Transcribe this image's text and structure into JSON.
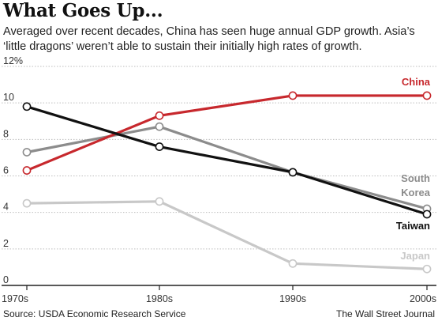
{
  "header": {
    "title": "What Goes Up...",
    "subtitle": "Averaged over recent decades, China has seen huge annual GDP growth. Asia’s ‘little dragons’ weren’t able to sustain their initially high rates of growth."
  },
  "footer": {
    "source": "Source: USDA Economic Research Service",
    "credit": "The Wall Street Journal"
  },
  "chart_data": {
    "type": "line",
    "title": "What Goes Up...",
    "subtitle": "Averaged over recent decades, China has seen huge annual GDP growth. Asia’s ‘little dragons’ weren’t able to sustain their initially high rates of growth.",
    "xlabel": "",
    "ylabel": "",
    "categories": [
      "1970s",
      "1980s",
      "1990s",
      "2000s"
    ],
    "ylim": [
      0,
      12
    ],
    "yticks": [
      0,
      2,
      4,
      6,
      8,
      10,
      12
    ],
    "ytick_labels": [
      "0",
      "2",
      "4",
      "6",
      "8",
      "10",
      "12%"
    ],
    "grid": "horizontal",
    "legend": "direct labels at right",
    "series": [
      {
        "name": "Japan",
        "label_lines": [
          "Japan"
        ],
        "color": "#c8c8c8",
        "values": [
          4.5,
          4.6,
          1.2,
          0.9
        ]
      },
      {
        "name": "South Korea",
        "label_lines": [
          "South",
          "Korea"
        ],
        "color": "#8c8c8c",
        "values": [
          7.3,
          8.7,
          6.2,
          4.2
        ]
      },
      {
        "name": "China",
        "label_lines": [
          "China"
        ],
        "color": "#c7282d",
        "values": [
          6.3,
          9.3,
          10.4,
          10.4
        ]
      },
      {
        "name": "Taiwan",
        "label_lines": [
          "Taiwan"
        ],
        "color": "#111111",
        "values": [
          9.8,
          7.6,
          6.2,
          3.9
        ]
      }
    ]
  }
}
